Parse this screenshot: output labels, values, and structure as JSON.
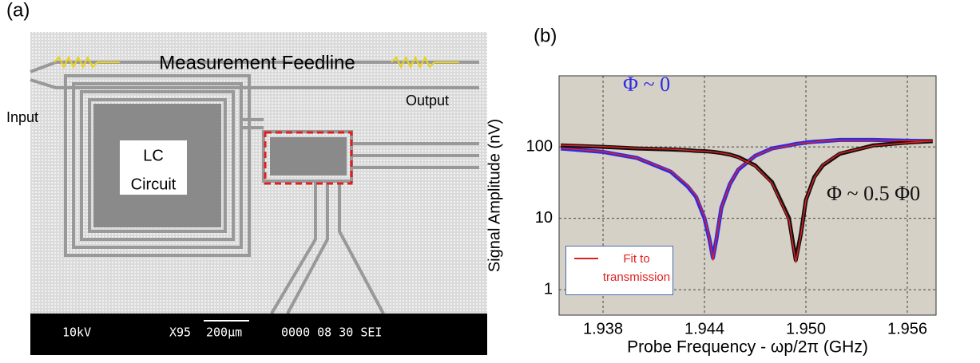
{
  "panel_a": {
    "label": "(a)",
    "feedline": "Measurement Feedline",
    "input": "Input",
    "output": "Output",
    "lc_line1": "LC",
    "lc_line2": "Circuit",
    "sem_kv": "10kV",
    "sem_mag": "X95",
    "sem_scale": "200µm",
    "sem_info": "0000 08 30 SEI"
  },
  "chart_data": {
    "type": "line",
    "panel_label": "(b)",
    "xlabel": "Probe Frequency - ωp/2π (GHz)",
    "ylabel": "Signal Amplitude (nV)",
    "log_y": true,
    "grid": true,
    "background": "#d6d1c6",
    "legend": "bottom-left",
    "x": [
      1.9355,
      1.938,
      1.94,
      1.942,
      1.943,
      1.9435,
      1.944,
      1.9443,
      1.9445,
      1.9447,
      1.945,
      1.9455,
      1.946,
      1.947,
      1.948,
      1.949,
      1.9494,
      1.9497,
      1.95,
      1.9505,
      1.951,
      1.952,
      1.954,
      1.956,
      1.9575
    ],
    "xlim": [
      1.9354,
      1.9577
    ],
    "xticks": [
      1.938,
      1.944,
      {
        "value": 1.95,
        "label": "1.950"
      },
      1.956
    ],
    "ylim": [
      0.44,
      990
    ],
    "yticks": [
      1,
      10,
      100
    ],
    "series": [
      {
        "color": "#2b2be6",
        "width": 5,
        "values": [
          95,
          85,
          70,
          45,
          28,
          20,
          10,
          5,
          2.8,
          5,
          14,
          30,
          48,
          75,
          95,
          105,
          110,
          112,
          115,
          118,
          120,
          125,
          125,
          122,
          120
        ]
      },
      {
        "color": "#111111",
        "width": 5,
        "values": [
          105,
          100,
          95,
          92,
          90,
          88,
          87,
          86,
          85,
          84,
          82,
          78,
          72,
          55,
          32,
          10,
          2.6,
          6,
          18,
          38,
          55,
          80,
          105,
          115,
          120
        ]
      },
      {
        "name": "Fit to transmission",
        "color": "#e02020",
        "width": 1.5,
        "values": [
          96,
          86,
          70,
          46,
          29,
          21,
          10.5,
          5.2,
          2.6,
          5.2,
          14,
          30,
          49,
          75,
          94,
          104,
          109,
          112,
          114,
          117,
          120,
          124,
          124,
          122,
          121
        ]
      },
      {
        "color": "#e02020",
        "width": 1.5,
        "values": [
          106,
          101,
          96,
          93,
          90,
          88,
          87,
          86,
          85,
          84,
          82,
          78,
          71,
          54,
          31,
          9.5,
          2.4,
          5.8,
          18,
          37,
          56,
          81,
          104,
          114,
          121
        ]
      }
    ],
    "annotations": [
      {
        "text": "Φ ~ 0",
        "color": "#2b2be6"
      },
      {
        "text": "Φ ~ 0.5 Φ0",
        "color": "#111111"
      }
    ]
  }
}
